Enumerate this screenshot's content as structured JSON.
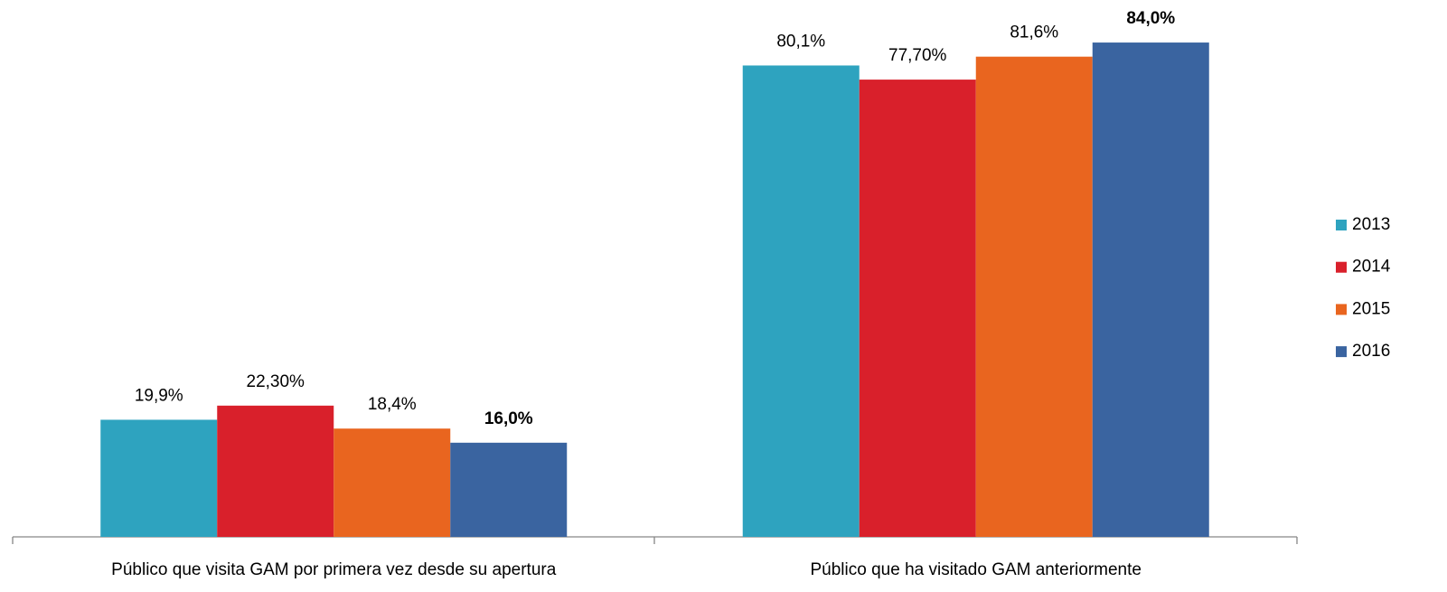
{
  "chart_data": {
    "type": "bar",
    "categories": [
      "Público que visita GAM por primera vez desde su apertura",
      "Público que ha visitado GAM anteriormente"
    ],
    "series": [
      {
        "name": "2013",
        "color": "#2ea3bf",
        "values": [
          19.9,
          80.1
        ],
        "value_labels": [
          "19,9%",
          "80,1%"
        ]
      },
      {
        "name": "2014",
        "color": "#d9202b",
        "values": [
          22.3,
          77.7
        ],
        "value_labels": [
          "22,30%",
          "77,70%"
        ]
      },
      {
        "name": "2015",
        "color": "#e9651f",
        "values": [
          18.4,
          81.6
        ],
        "value_labels": [
          "18,4%",
          "81,6%"
        ]
      },
      {
        "name": "2016",
        "color": "#3a64a0",
        "values": [
          16.0,
          84.0
        ],
        "value_labels": [
          "16,0%",
          "84,0%"
        ],
        "label_bold": true
      }
    ],
    "ylim": [
      0,
      90
    ],
    "legend": "right"
  }
}
